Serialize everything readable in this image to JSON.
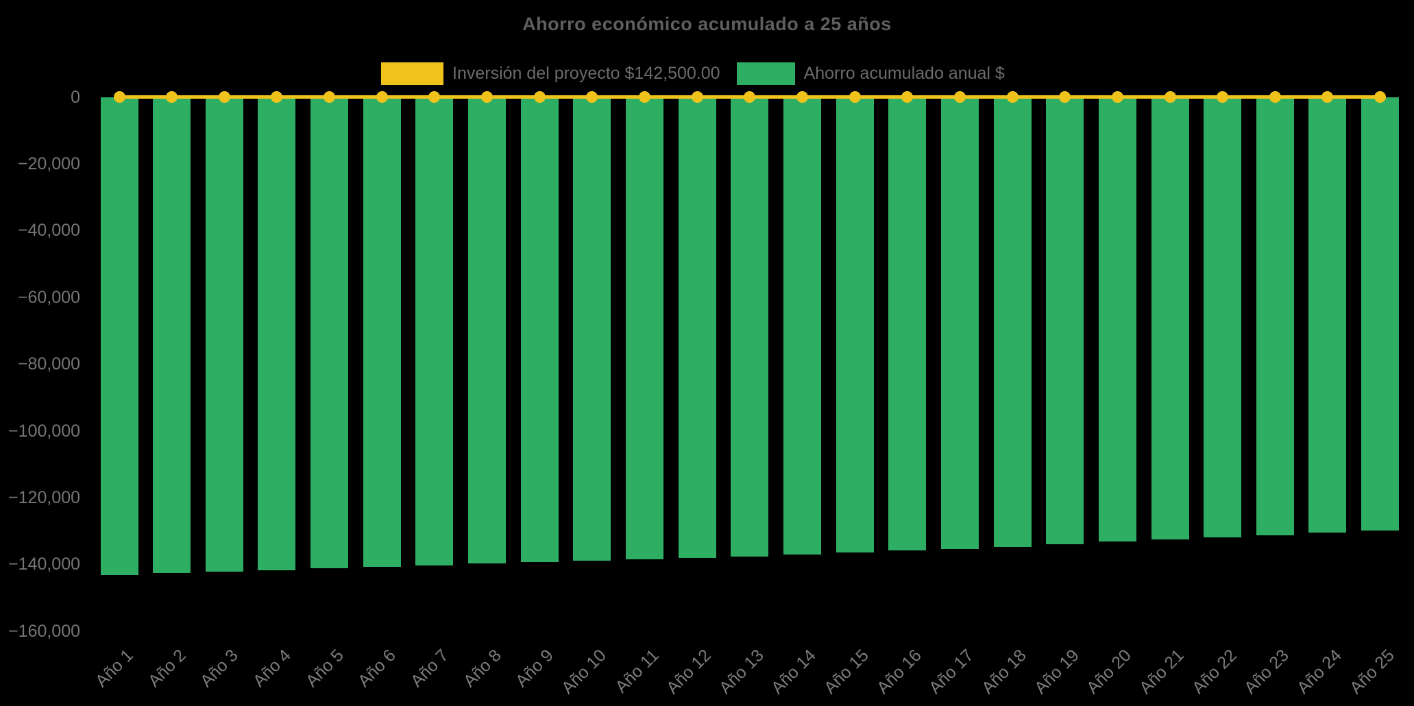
{
  "chart_title": "Ahorro económico acumulado a 25 años",
  "legend": {
    "investment_label": "Inversión del proyecto $142,500.00",
    "savings_label": "Ahorro acumulado anual $"
  },
  "colors": {
    "investment": "#F0C31C",
    "savings": "#2EAE62",
    "background": "#000000",
    "title_text": "#5f5f5f",
    "axis_text": "#757575"
  },
  "chart_data": {
    "type": "bar",
    "title": "Ahorro económico acumulado a 25 años",
    "categories": [
      "Año 1",
      "Año 2",
      "Año 3",
      "Año 4",
      "Año 5",
      "Año 6",
      "Año 7",
      "Año 8",
      "Año 9",
      "Año 10",
      "Año 11",
      "Año 12",
      "Año 13",
      "Año 14",
      "Año 15",
      "Año 16",
      "Año 17",
      "Año 18",
      "Año 19",
      "Año 20",
      "Año 21",
      "Año 22",
      "Año 23",
      "Año 24",
      "Año 25"
    ],
    "series": [
      {
        "name": "Inversión del proyecto $142,500.00",
        "type": "line",
        "color": "#F0C31C",
        "marker": "circle",
        "values": [
          0,
          0,
          0,
          0,
          0,
          0,
          0,
          0,
          0,
          0,
          0,
          0,
          0,
          0,
          0,
          0,
          0,
          0,
          0,
          0,
          0,
          0,
          0,
          0,
          0
        ]
      },
      {
        "name": "Ahorro acumulado anual $",
        "type": "bar",
        "color": "#2EAE62",
        "values": [
          -143300,
          -142700,
          -142200,
          -141700,
          -141200,
          -140700,
          -140300,
          -139800,
          -139400,
          -139000,
          -138500,
          -138000,
          -137600,
          -137100,
          -136500,
          -135900,
          -135400,
          -134900,
          -134000,
          -133200,
          -132600,
          -131900,
          -131400,
          -130500,
          -129900
        ]
      }
    ],
    "investment_amount": 142500.0,
    "xlabel": "",
    "ylabel": "",
    "ylim": [
      -160000,
      0
    ],
    "yticks": [
      {
        "value": 0,
        "label": "0"
      },
      {
        "value": -20000,
        "label": "−20,000"
      },
      {
        "value": -40000,
        "label": "−40,000"
      },
      {
        "value": -60000,
        "label": "−60,000"
      },
      {
        "value": -80000,
        "label": "−80,000"
      },
      {
        "value": -100000,
        "label": "−100,000"
      },
      {
        "value": -120000,
        "label": "−120,000"
      },
      {
        "value": -140000,
        "label": "−140,000"
      },
      {
        "value": -160000,
        "label": "−160,000"
      }
    ],
    "x_label_rotation": -45,
    "grid": false,
    "legend_position": "top"
  }
}
